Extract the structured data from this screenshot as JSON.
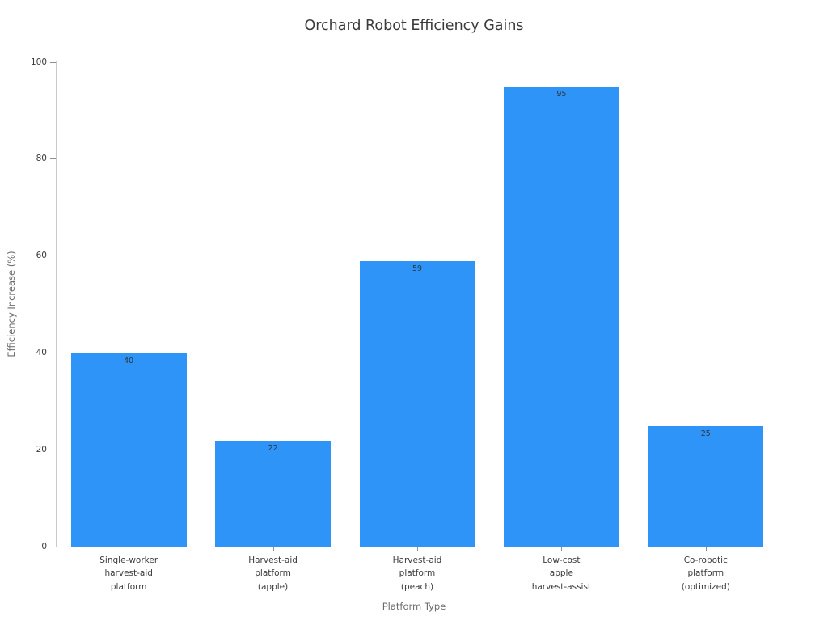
{
  "chart_data": {
    "type": "bar",
    "title": "Orchard Robot Efficiency Gains",
    "xlabel": "Platform Type",
    "ylabel": "Efficiency Increase (%)",
    "categories": [
      "Single-worker\nharvest-aid\nplatform",
      "Harvest-aid\nplatform\n(apple)",
      "Harvest-aid\nplatform\n(peach)",
      "Low-cost\napple\nharvest-assist",
      "Co-robotic\nplatform\n(optimized)"
    ],
    "values": [
      40,
      22,
      59,
      95,
      25
    ],
    "value_labels": [
      "40",
      "22",
      "59",
      "95",
      "25"
    ],
    "yticks": [
      "0",
      "20",
      "40",
      "60",
      "80",
      "100"
    ],
    "ylim": [
      0,
      100
    ],
    "bar_color": "#2F94F7",
    "value_label_color": "#2f363b",
    "legend": "none",
    "grid": false
  }
}
